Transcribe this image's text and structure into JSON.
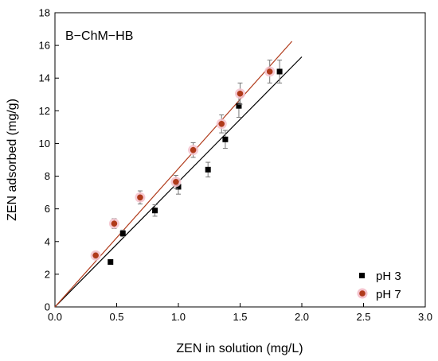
{
  "chart_data": {
    "type": "scatter",
    "annotation": "B−ChM−HB",
    "xlabel": "ZEN in solution (mg/L)",
    "ylabel": "ZEN adsorbed (mg/g)",
    "xlim": [
      0,
      3
    ],
    "ylim": [
      0,
      18
    ],
    "xticks": [
      "0.0",
      "0.5",
      "1.0",
      "1.5",
      "2.0",
      "2.5",
      "3.0"
    ],
    "yticks": [
      "0",
      "2",
      "4",
      "6",
      "8",
      "10",
      "12",
      "14",
      "16",
      "18"
    ],
    "legend_position": "bottom-right",
    "series": [
      {
        "name": "pH 3",
        "marker": "square",
        "color": "#000000",
        "x": [
          0.45,
          0.55,
          0.81,
          1.0,
          1.24,
          1.38,
          1.49,
          1.82
        ],
        "y": [
          2.75,
          4.5,
          5.9,
          7.35,
          8.4,
          10.25,
          12.3,
          14.4
        ],
        "err": [
          0.0,
          0.2,
          0.35,
          0.45,
          0.45,
          0.55,
          0.7,
          0.7
        ],
        "fit_line": {
          "x": [
            0,
            2.0
          ],
          "y": [
            0,
            15.3
          ],
          "color": "#000000"
        }
      },
      {
        "name": "pH 7",
        "marker": "circle",
        "color": "#b03a1a",
        "x": [
          0.33,
          0.48,
          0.69,
          0.98,
          1.12,
          1.35,
          1.5,
          1.74
        ],
        "y": [
          3.15,
          5.1,
          6.7,
          7.65,
          9.6,
          11.2,
          13.05,
          14.4
        ],
        "err": [
          0.2,
          0.3,
          0.4,
          0.4,
          0.45,
          0.55,
          0.65,
          0.7
        ],
        "fit_line": {
          "x": [
            0,
            1.92
          ],
          "y": [
            0,
            16.25
          ],
          "color": "#b03a1a"
        }
      }
    ]
  }
}
